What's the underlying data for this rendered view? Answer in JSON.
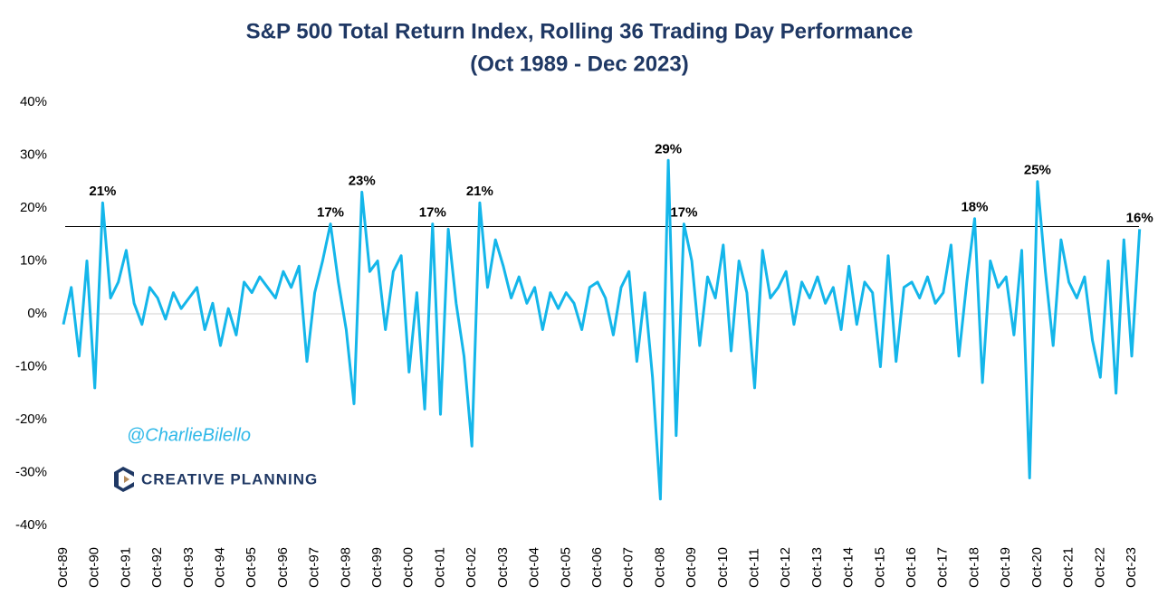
{
  "chart_data": {
    "type": "line",
    "title": "S&P 500 Total Return Index, Rolling 36 Trading Day Performance",
    "subtitle": "(Oct 1989 - Dec 2023)",
    "watermark": "@CharlieBilello",
    "brand": "CREATIVE PLANNING",
    "categories": [
      "Oct-89",
      null,
      null,
      null,
      "Oct-90",
      null,
      null,
      null,
      "Oct-91",
      null,
      null,
      null,
      "Oct-92",
      null,
      null,
      null,
      "Oct-93",
      null,
      null,
      null,
      "Oct-94",
      null,
      null,
      null,
      "Oct-95",
      null,
      null,
      null,
      "Oct-96",
      null,
      null,
      null,
      "Oct-97",
      null,
      null,
      null,
      "Oct-98",
      null,
      null,
      null,
      "Oct-99",
      null,
      null,
      null,
      "Oct-00",
      null,
      null,
      null,
      "Oct-01",
      null,
      null,
      null,
      "Oct-02",
      null,
      null,
      null,
      "Oct-03",
      null,
      null,
      null,
      "Oct-04",
      null,
      null,
      null,
      "Oct-05",
      null,
      null,
      null,
      "Oct-06",
      null,
      null,
      null,
      "Oct-07",
      null,
      null,
      null,
      "Oct-08",
      null,
      null,
      null,
      "Oct-09",
      null,
      null,
      null,
      "Oct-10",
      null,
      null,
      null,
      "Oct-11",
      null,
      null,
      null,
      "Oct-12",
      null,
      null,
      null,
      "Oct-13",
      null,
      null,
      null,
      "Oct-14",
      null,
      null,
      null,
      "Oct-15",
      null,
      null,
      null,
      "Oct-16",
      null,
      null,
      null,
      "Oct-17",
      null,
      null,
      null,
      "Oct-18",
      null,
      null,
      null,
      "Oct-19",
      null,
      null,
      null,
      "Oct-20",
      null,
      null,
      null,
      "Oct-21",
      null,
      null,
      null,
      "Oct-22",
      null,
      null,
      null,
      "Oct-23",
      null
    ],
    "series": [
      {
        "color": "#14b6ea",
        "values": [
          -2,
          5,
          -8,
          10,
          -14,
          21,
          3,
          6,
          12,
          2,
          -2,
          5,
          3,
          -1,
          4,
          1,
          3,
          5,
          -3,
          2,
          -6,
          1,
          -4,
          6,
          4,
          7,
          5,
          3,
          8,
          5,
          9,
          -9,
          4,
          10,
          17,
          6,
          -3,
          -17,
          23,
          8,
          10,
          -3,
          8,
          11,
          -11,
          4,
          -18,
          17,
          -19,
          16,
          2,
          -8,
          -25,
          21,
          5,
          14,
          9,
          3,
          7,
          2,
          5,
          -3,
          4,
          1,
          4,
          2,
          -3,
          5,
          6,
          3,
          -4,
          5,
          8,
          -9,
          4,
          -12,
          -35,
          29,
          -23,
          17,
          10,
          -6,
          7,
          3,
          13,
          -7,
          10,
          4,
          -14,
          12,
          3,
          5,
          8,
          -2,
          6,
          3,
          7,
          2,
          5,
          -3,
          9,
          -2,
          6,
          4,
          -10,
          11,
          -9,
          5,
          6,
          3,
          7,
          2,
          4,
          13,
          -8,
          6,
          18,
          -13,
          10,
          5,
          7,
          -4,
          12,
          -31,
          25,
          8,
          -6,
          14,
          6,
          3,
          7,
          -5,
          -12,
          10,
          -15,
          14,
          -8,
          16
        ],
        "value_labels": [
          null,
          null,
          null,
          null,
          null,
          "21%",
          null,
          null,
          null,
          null,
          null,
          null,
          null,
          null,
          null,
          null,
          null,
          null,
          null,
          null,
          null,
          null,
          null,
          null,
          null,
          null,
          null,
          null,
          null,
          null,
          null,
          null,
          null,
          null,
          "17%",
          null,
          null,
          null,
          "23%",
          null,
          null,
          null,
          null,
          null,
          null,
          null,
          null,
          "17%",
          null,
          null,
          null,
          null,
          null,
          "21%",
          null,
          null,
          null,
          null,
          null,
          null,
          null,
          null,
          null,
          null,
          null,
          null,
          null,
          null,
          null,
          null,
          null,
          null,
          null,
          null,
          null,
          null,
          null,
          "29%",
          null,
          "17%",
          null,
          null,
          null,
          null,
          null,
          null,
          null,
          null,
          null,
          null,
          null,
          null,
          null,
          null,
          null,
          null,
          null,
          null,
          null,
          null,
          null,
          null,
          null,
          null,
          null,
          null,
          null,
          null,
          null,
          null,
          null,
          null,
          null,
          null,
          null,
          null,
          "18%",
          null,
          null,
          null,
          null,
          null,
          null,
          null,
          "25%",
          null,
          null,
          null,
          null,
          null,
          null,
          null,
          null,
          null,
          null,
          null,
          null,
          "16%"
        ]
      }
    ],
    "ylim": [
      -40,
      40
    ],
    "yticks": [
      {
        "value": -40,
        "label": "-40%"
      },
      {
        "value": -30,
        "label": "-30%"
      },
      {
        "value": -20,
        "label": "-20%"
      },
      {
        "value": -10,
        "label": "-10%"
      },
      {
        "value": 0,
        "label": "0%"
      },
      {
        "value": 10,
        "label": "10%"
      },
      {
        "value": 20,
        "label": "20%"
      },
      {
        "value": 30,
        "label": "30%"
      },
      {
        "value": 40,
        "label": "40%"
      }
    ],
    "reference_line": 16.5
  }
}
